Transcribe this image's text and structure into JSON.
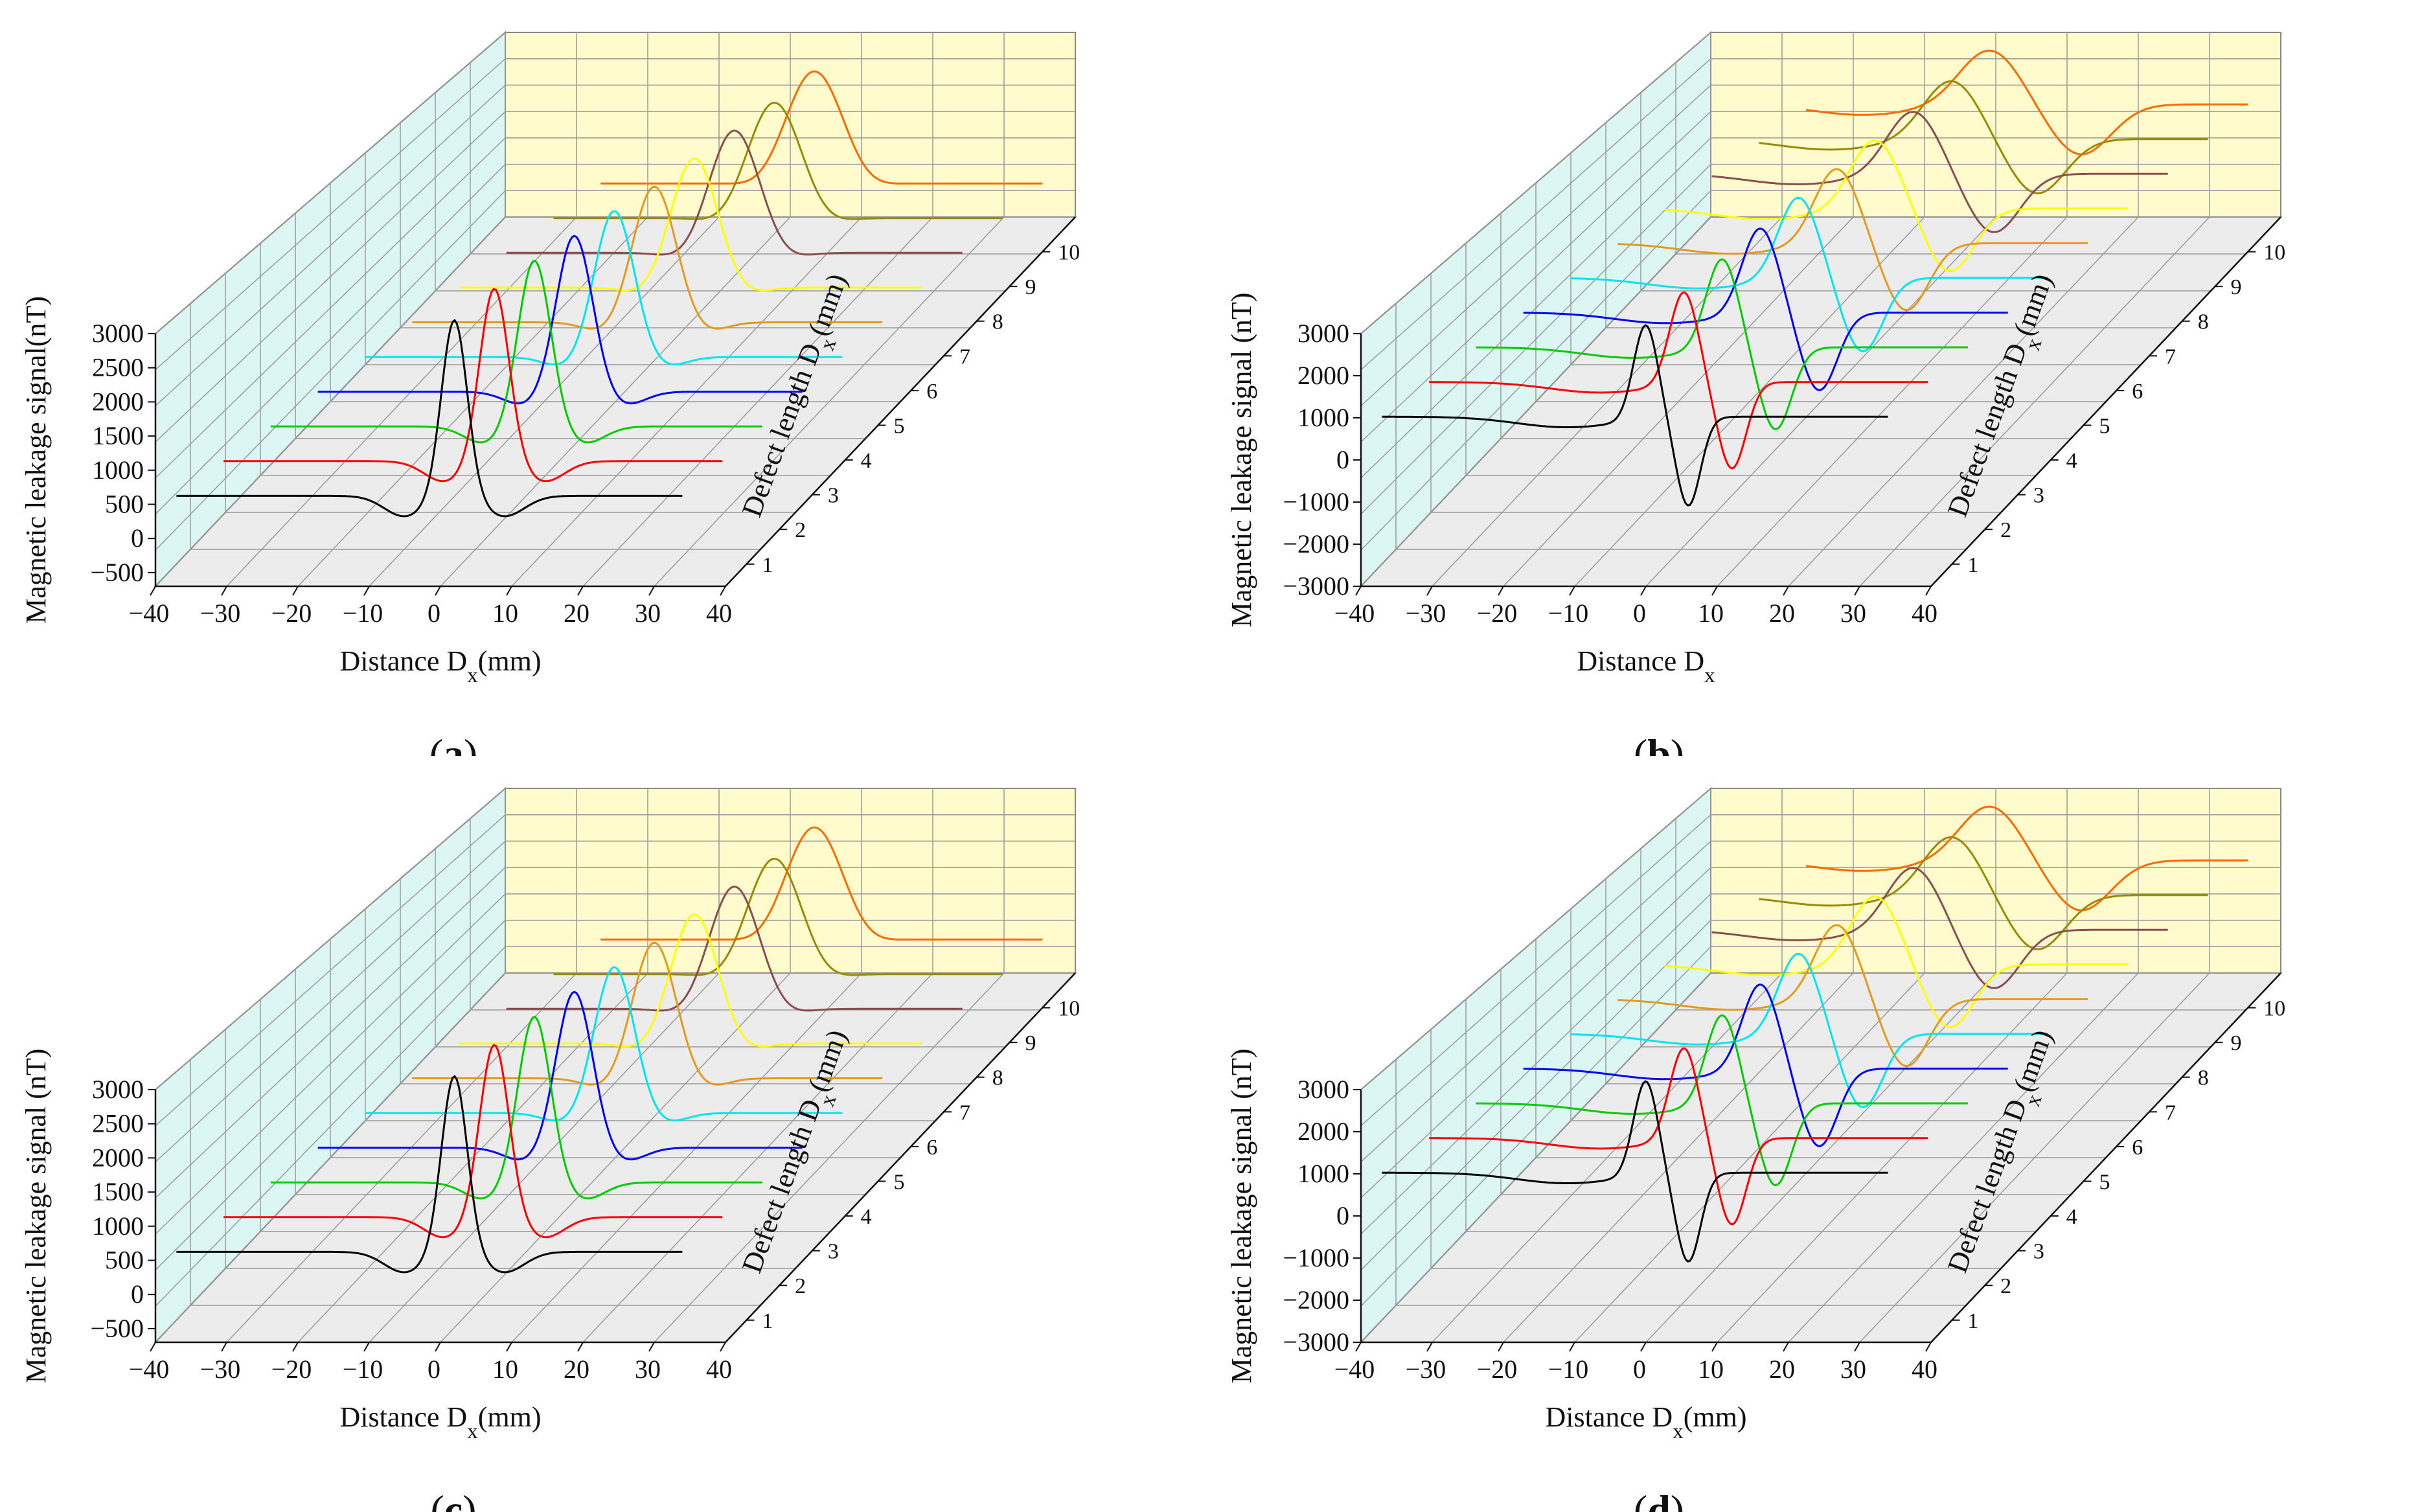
{
  "figure": {
    "x_axis_title_mm": "Distance Dx(mm)",
    "x_axis_title_plain": "Distance Dx",
    "y_axis_title": "Magnetic leakage signal(nT)",
    "y_axis_title_spaced": "Magnetic leakage signal (nT)",
    "z_axis_title": "Defect length Dx(mm)",
    "colors": {
      "wall_back": "#fffbcc",
      "wall_left": "#dcf6f4",
      "floor": "#ececec",
      "grid": "#9a9a9a",
      "series": [
        "#000000",
        "#ff0000",
        "#00cc00",
        "#0000ff",
        "#00e5ee",
        "#e39a1c",
        "#ffff00",
        "#8b4d4d",
        "#9a8a00",
        "#ff6a00"
      ]
    }
  },
  "chart_data": [
    {
      "panel": "a",
      "caption": "(a)",
      "type": "line",
      "signal_type": "peak",
      "title": "",
      "xlabel": "Distance Dx(mm)",
      "ylabel": "Magnetic leakage signal(nT)",
      "zlabel": "Defect length Dx(mm)",
      "x_ticks": [
        "−40",
        "−30",
        "−20",
        "−10",
        "0",
        "10",
        "20",
        "30",
        "40"
      ],
      "y_ticks": [
        "−500",
        "0",
        "500",
        "1000",
        "1500",
        "2000",
        "2500",
        "3000"
      ],
      "z_ticks": [
        "1",
        "2",
        "3",
        "4",
        "5",
        "6",
        "7",
        "8",
        "9",
        "10"
      ],
      "xlim": [
        -40,
        40
      ],
      "ylim": [
        -700,
        3000
      ],
      "series": [
        {
          "name": "1 mm",
          "defect_length_mm": 1,
          "baseline_nT": 300,
          "peak_nT": 2900,
          "dip_nT": 0
        },
        {
          "name": "2 mm",
          "defect_length_mm": 2,
          "baseline_nT": 300,
          "peak_nT": 2850,
          "dip_nT": 0
        },
        {
          "name": "3 mm",
          "defect_length_mm": 3,
          "baseline_nT": 300,
          "peak_nT": 2750,
          "dip_nT": 50
        },
        {
          "name": "4 mm",
          "defect_length_mm": 4,
          "baseline_nT": 300,
          "peak_nT": 2600,
          "dip_nT": 100
        },
        {
          "name": "5 mm",
          "defect_length_mm": 5,
          "baseline_nT": 300,
          "peak_nT": 2450,
          "dip_nT": 150
        },
        {
          "name": "6 mm",
          "defect_length_mm": 6,
          "baseline_nT": 300,
          "peak_nT": 2300,
          "dip_nT": 150
        },
        {
          "name": "7 mm",
          "defect_length_mm": 7,
          "baseline_nT": 300,
          "peak_nT": 2200,
          "dip_nT": 200
        },
        {
          "name": "8 mm",
          "defect_length_mm": 8,
          "baseline_nT": 300,
          "peak_nT": 2100,
          "dip_nT": 200
        },
        {
          "name": "9 mm",
          "defect_length_mm": 9,
          "baseline_nT": 300,
          "peak_nT": 2000,
          "dip_nT": 200
        },
        {
          "name": "10 mm",
          "defect_length_mm": 10,
          "baseline_nT": 300,
          "peak_nT": 1950,
          "dip_nT": 200
        }
      ]
    },
    {
      "panel": "b",
      "caption": "(b)",
      "type": "line",
      "signal_type": "bipolar",
      "title": "",
      "xlabel": "Distance Dx",
      "ylabel": "Magnetic leakage signal (nT)",
      "zlabel": "Defect length Dx(mm)",
      "x_ticks": [
        "−40",
        "−30",
        "−20",
        "−10",
        "0",
        "10",
        "20",
        "30",
        "40"
      ],
      "y_ticks": [
        "−3000",
        "−2000",
        "−1000",
        "0",
        "1000",
        "2000",
        "3000"
      ],
      "z_ticks": [
        "1",
        "2",
        "3",
        "4",
        "5",
        "6",
        "7",
        "8",
        "9",
        "10"
      ],
      "xlim": [
        -40,
        40
      ],
      "ylim": [
        -3000,
        3000
      ],
      "series": [
        {
          "name": "1 mm",
          "defect_length_mm": 1,
          "baseline_nT": 500,
          "peak_nT": 2750,
          "dip_nT": -1600
        },
        {
          "name": "2 mm",
          "defect_length_mm": 2,
          "baseline_nT": 500,
          "peak_nT": 2700,
          "dip_nT": -1550
        },
        {
          "name": "3 mm",
          "defect_length_mm": 3,
          "baseline_nT": 500,
          "peak_nT": 2650,
          "dip_nT": -1450
        },
        {
          "name": "4 mm",
          "defect_length_mm": 4,
          "baseline_nT": 500,
          "peak_nT": 2550,
          "dip_nT": -1350
        },
        {
          "name": "5 mm",
          "defect_length_mm": 5,
          "baseline_nT": 500,
          "peak_nT": 2450,
          "dip_nT": -1250
        },
        {
          "name": "6 mm",
          "defect_length_mm": 6,
          "baseline_nT": 500,
          "peak_nT": 2300,
          "dip_nT": -1100
        },
        {
          "name": "7 mm",
          "defect_length_mm": 7,
          "baseline_nT": 500,
          "peak_nT": 2150,
          "dip_nT": -1000
        },
        {
          "name": "8 mm",
          "defect_length_mm": 8,
          "baseline_nT": 500,
          "peak_nT": 2000,
          "dip_nT": -900
        },
        {
          "name": "9 mm",
          "defect_length_mm": 9,
          "baseline_nT": 500,
          "peak_nT": 1900,
          "dip_nT": -800
        },
        {
          "name": "10 mm",
          "defect_length_mm": 10,
          "baseline_nT": 500,
          "peak_nT": 1800,
          "dip_nT": -700
        }
      ]
    },
    {
      "panel": "c",
      "caption": "(c)",
      "type": "line",
      "signal_type": "peak",
      "title": "",
      "xlabel": "Distance Dx(mm)",
      "ylabel": "Magnetic leakage signal (nT)",
      "zlabel": "Defect length Dx(mm)",
      "x_ticks": [
        "−40",
        "−30",
        "−20",
        "−10",
        "0",
        "10",
        "20",
        "30",
        "40"
      ],
      "y_ticks": [
        "−500",
        "0",
        "500",
        "1000",
        "1500",
        "2000",
        "2500",
        "3000"
      ],
      "z_ticks": [
        "1",
        "2",
        "3",
        "4",
        "5",
        "6",
        "7",
        "8",
        "9",
        "10"
      ],
      "xlim": [
        -40,
        40
      ],
      "ylim": [
        -700,
        3000
      ],
      "series": [
        {
          "name": "1 mm",
          "defect_length_mm": 1,
          "baseline_nT": 300,
          "peak_nT": 2900,
          "dip_nT": 0
        },
        {
          "name": "2 mm",
          "defect_length_mm": 2,
          "baseline_nT": 300,
          "peak_nT": 2850,
          "dip_nT": 0
        },
        {
          "name": "3 mm",
          "defect_length_mm": 3,
          "baseline_nT": 300,
          "peak_nT": 2750,
          "dip_nT": 50
        },
        {
          "name": "4 mm",
          "defect_length_mm": 4,
          "baseline_nT": 300,
          "peak_nT": 2600,
          "dip_nT": 100
        },
        {
          "name": "5 mm",
          "defect_length_mm": 5,
          "baseline_nT": 300,
          "peak_nT": 2450,
          "dip_nT": 150
        },
        {
          "name": "6 mm",
          "defect_length_mm": 6,
          "baseline_nT": 300,
          "peak_nT": 2300,
          "dip_nT": 150
        },
        {
          "name": "7 mm",
          "defect_length_mm": 7,
          "baseline_nT": 300,
          "peak_nT": 2200,
          "dip_nT": 200
        },
        {
          "name": "8 mm",
          "defect_length_mm": 8,
          "baseline_nT": 300,
          "peak_nT": 2100,
          "dip_nT": 200
        },
        {
          "name": "9 mm",
          "defect_length_mm": 9,
          "baseline_nT": 300,
          "peak_nT": 2000,
          "dip_nT": 200
        },
        {
          "name": "10 mm",
          "defect_length_mm": 10,
          "baseline_nT": 300,
          "peak_nT": 1950,
          "dip_nT": 200
        }
      ]
    },
    {
      "panel": "d",
      "caption": "(d)",
      "type": "line",
      "signal_type": "bipolar",
      "title": "",
      "xlabel": "Distance Dx(mm)",
      "ylabel": "Magnetic leakage signal (nT)",
      "zlabel": "Defect length Dx(mm)",
      "x_ticks": [
        "−40",
        "−30",
        "−20",
        "−10",
        "0",
        "10",
        "20",
        "30",
        "40"
      ],
      "y_ticks": [
        "−3000",
        "−2000",
        "−1000",
        "0",
        "1000",
        "2000",
        "3000"
      ],
      "z_ticks": [
        "1",
        "2",
        "3",
        "4",
        "5",
        "6",
        "7",
        "8",
        "9",
        "10"
      ],
      "xlim": [
        -40,
        40
      ],
      "ylim": [
        -3000,
        3000
      ],
      "series": [
        {
          "name": "1 mm",
          "defect_length_mm": 1,
          "baseline_nT": 500,
          "peak_nT": 2750,
          "dip_nT": -1600
        },
        {
          "name": "2 mm",
          "defect_length_mm": 2,
          "baseline_nT": 500,
          "peak_nT": 2700,
          "dip_nT": -1550
        },
        {
          "name": "3 mm",
          "defect_length_mm": 3,
          "baseline_nT": 500,
          "peak_nT": 2650,
          "dip_nT": -1450
        },
        {
          "name": "4 mm",
          "defect_length_mm": 4,
          "baseline_nT": 500,
          "peak_nT": 2550,
          "dip_nT": -1350
        },
        {
          "name": "5 mm",
          "defect_length_mm": 5,
          "baseline_nT": 500,
          "peak_nT": 2450,
          "dip_nT": -1250
        },
        {
          "name": "6 mm",
          "defect_length_mm": 6,
          "baseline_nT": 500,
          "peak_nT": 2300,
          "dip_nT": -1100
        },
        {
          "name": "7 mm",
          "defect_length_mm": 7,
          "baseline_nT": 500,
          "peak_nT": 2150,
          "dip_nT": -1000
        },
        {
          "name": "8 mm",
          "defect_length_mm": 8,
          "baseline_nT": 500,
          "peak_nT": 2000,
          "dip_nT": -900
        },
        {
          "name": "9 mm",
          "defect_length_mm": 9,
          "baseline_nT": 500,
          "peak_nT": 1900,
          "dip_nT": -800
        },
        {
          "name": "10 mm",
          "defect_length_mm": 10,
          "baseline_nT": 500,
          "peak_nT": 1800,
          "dip_nT": -700
        }
      ]
    }
  ]
}
